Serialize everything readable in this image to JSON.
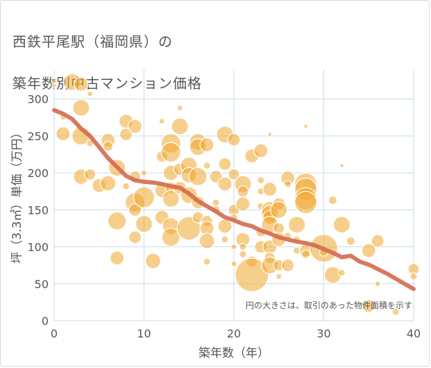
{
  "title_lines": [
    "西鉄平尾駅（福岡県）の",
    "築年数別中古マンション価格"
  ],
  "colors": {
    "bubble": "#f0a830",
    "trend": "#d4694f",
    "grid": "#c5dbe9",
    "axis_text": "#555555"
  },
  "chart_data": {
    "type": "scatter",
    "xlabel": "築年数（年）",
    "ylabel": "坪（3.3㎡）単価（万円）",
    "xlim": [
      0,
      40
    ],
    "ylim": [
      0,
      340
    ],
    "xticks": [
      0,
      10,
      20,
      30,
      40
    ],
    "yticks": [
      0,
      50,
      100,
      150,
      200,
      250,
      300
    ],
    "grid": true,
    "note": "円の大きさは、取引のあった物件面積を示す",
    "points": [
      [
        0,
        325,
        4
      ],
      [
        0,
        318,
        3
      ],
      [
        1,
        275,
        4
      ],
      [
        1,
        253,
        10
      ],
      [
        2,
        323,
        12
      ],
      [
        3,
        320,
        10
      ],
      [
        3,
        288,
        12
      ],
      [
        3,
        250,
        13
      ],
      [
        3,
        195,
        11
      ],
      [
        4,
        240,
        5
      ],
      [
        4,
        198,
        8
      ],
      [
        4,
        307,
        4
      ],
      [
        5,
        183,
        10
      ],
      [
        6,
        244,
        10
      ],
      [
        6,
        236,
        7
      ],
      [
        6,
        186,
        11
      ],
      [
        7,
        207,
        12
      ],
      [
        7,
        135,
        13
      ],
      [
        7,
        85,
        10
      ],
      [
        8,
        270,
        10
      ],
      [
        8,
        252,
        9
      ],
      [
        8,
        182,
        5
      ],
      [
        9,
        263,
        10
      ],
      [
        9,
        195,
        8
      ],
      [
        9,
        160,
        14
      ],
      [
        9,
        150,
        9
      ],
      [
        9,
        113,
        9
      ],
      [
        10,
        200,
        4
      ],
      [
        10,
        167,
        15
      ],
      [
        10,
        131,
        12
      ],
      [
        11,
        81,
        11
      ],
      [
        12,
        270,
        4
      ],
      [
        12,
        222,
        8
      ],
      [
        12,
        176,
        10
      ],
      [
        12,
        140,
        10
      ],
      [
        13,
        240,
        14
      ],
      [
        13,
        228,
        14
      ],
      [
        13,
        200,
        11
      ],
      [
        13,
        180,
        8
      ],
      [
        13,
        165,
        12
      ],
      [
        13,
        128,
        12
      ],
      [
        13,
        113,
        13
      ],
      [
        14,
        288,
        4
      ],
      [
        14,
        263,
        12
      ],
      [
        14,
        205,
        9
      ],
      [
        14,
        180,
        9
      ],
      [
        15,
        210,
        12
      ],
      [
        15,
        197,
        11
      ],
      [
        15,
        170,
        12
      ],
      [
        15,
        125,
        17
      ],
      [
        16,
        242,
        12
      ],
      [
        16,
        235,
        12
      ],
      [
        16,
        195,
        13
      ],
      [
        16,
        160,
        9
      ],
      [
        16,
        140,
        8
      ],
      [
        17,
        238,
        10
      ],
      [
        17,
        210,
        5
      ],
      [
        17,
        135,
        8
      ],
      [
        17,
        125,
        10
      ],
      [
        17,
        108,
        11
      ],
      [
        17,
        80,
        5
      ],
      [
        18,
        195,
        9
      ],
      [
        18,
        160,
        5
      ],
      [
        18,
        150,
        6
      ],
      [
        19,
        252,
        12
      ],
      [
        19,
        212,
        9
      ],
      [
        19,
        185,
        10
      ],
      [
        19,
        128,
        10
      ],
      [
        19,
        110,
        5
      ],
      [
        20,
        245,
        9
      ],
      [
        20,
        198,
        8
      ],
      [
        20,
        150,
        8
      ],
      [
        20,
        140,
        5
      ],
      [
        20,
        100,
        4
      ],
      [
        20,
        77,
        4
      ],
      [
        21,
        185,
        12
      ],
      [
        21,
        175,
        8
      ],
      [
        21,
        158,
        10
      ],
      [
        21,
        110,
        10
      ],
      [
        21,
        100,
        5
      ],
      [
        21,
        90,
        5
      ],
      [
        22,
        223,
        10
      ],
      [
        22,
        80,
        8
      ],
      [
        22,
        62,
        24
      ],
      [
        23,
        230,
        10
      ],
      [
        23,
        190,
        5
      ],
      [
        23,
        175,
        5
      ],
      [
        23,
        155,
        5
      ],
      [
        23,
        120,
        7
      ],
      [
        23,
        100,
        9
      ],
      [
        24,
        178,
        10
      ],
      [
        24,
        150,
        12
      ],
      [
        24,
        145,
        12
      ],
      [
        24,
        140,
        10
      ],
      [
        24,
        130,
        12
      ],
      [
        24,
        100,
        10
      ],
      [
        24,
        85,
        8
      ],
      [
        24,
        75,
        12
      ],
      [
        24,
        252,
        3
      ],
      [
        25,
        158,
        9
      ],
      [
        25,
        150,
        12
      ],
      [
        25,
        125,
        8
      ],
      [
        25,
        110,
        10
      ],
      [
        25,
        75,
        8
      ],
      [
        25,
        60,
        4
      ],
      [
        26,
        193,
        10
      ],
      [
        26,
        185,
        5
      ],
      [
        26,
        115,
        5
      ],
      [
        26,
        75,
        9
      ],
      [
        27,
        130,
        12
      ],
      [
        27,
        110,
        5
      ],
      [
        27,
        95,
        5
      ],
      [
        28,
        263,
        3
      ],
      [
        28,
        185,
        16
      ],
      [
        28,
        178,
        16
      ],
      [
        28,
        165,
        16
      ],
      [
        28,
        160,
        16
      ],
      [
        28,
        95,
        9
      ],
      [
        28,
        90,
        6
      ],
      [
        30,
        98,
        20
      ],
      [
        30,
        93,
        6
      ],
      [
        31,
        163,
        6
      ],
      [
        31,
        62,
        12
      ],
      [
        32,
        210,
        3
      ],
      [
        32,
        130,
        12
      ],
      [
        32,
        65,
        5
      ],
      [
        33,
        108,
        6
      ],
      [
        35,
        95,
        10
      ],
      [
        35,
        20,
        9
      ],
      [
        36,
        108,
        9
      ],
      [
        36,
        50,
        4
      ],
      [
        38,
        12,
        5
      ],
      [
        40,
        70,
        8
      ],
      [
        40,
        60,
        5
      ]
    ],
    "trend": [
      [
        0,
        285
      ],
      [
        1,
        280
      ],
      [
        2,
        273
      ],
      [
        3,
        260
      ],
      [
        4,
        250
      ],
      [
        5,
        235
      ],
      [
        6,
        220
      ],
      [
        7,
        208
      ],
      [
        8,
        196
      ],
      [
        9,
        190
      ],
      [
        10,
        188
      ],
      [
        11,
        187
      ],
      [
        12,
        185
      ],
      [
        13,
        182
      ],
      [
        14,
        180
      ],
      [
        15,
        172
      ],
      [
        16,
        162
      ],
      [
        17,
        155
      ],
      [
        18,
        148
      ],
      [
        19,
        140
      ],
      [
        20,
        136
      ],
      [
        21,
        131
      ],
      [
        22,
        128
      ],
      [
        23,
        122
      ],
      [
        24,
        118
      ],
      [
        25,
        113
      ],
      [
        26,
        110
      ],
      [
        27,
        107
      ],
      [
        28,
        105
      ],
      [
        29,
        102
      ],
      [
        30,
        97
      ],
      [
        31,
        92
      ],
      [
        32,
        86
      ],
      [
        33,
        88
      ],
      [
        34,
        80
      ],
      [
        35,
        76
      ],
      [
        36,
        70
      ],
      [
        37,
        64
      ],
      [
        38,
        57
      ],
      [
        39,
        50
      ],
      [
        40,
        43
      ]
    ]
  }
}
